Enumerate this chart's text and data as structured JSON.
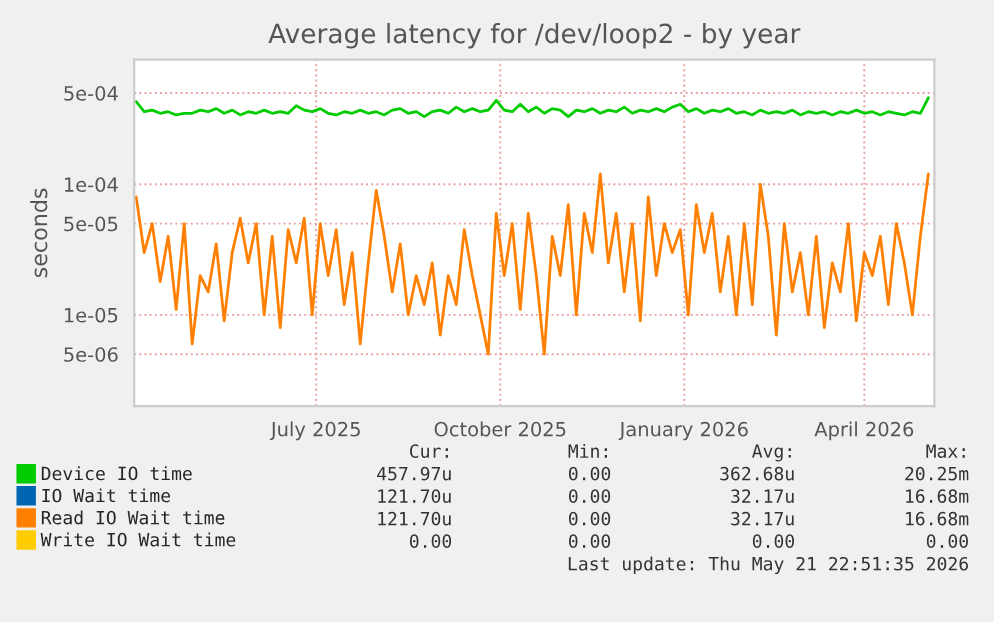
{
  "chart_data": {
    "type": "line",
    "title": "Average latency for /dev/loop2 - by year",
    "ylabel": "seconds",
    "log": "y",
    "grid": true,
    "legend": "bottom",
    "marker": "none",
    "line_style": "solid",
    "xlim": [
      "2025-04-16",
      "2026-05-21"
    ],
    "xticks": [
      {
        "value": "2025-07-16",
        "label": "July 2025"
      },
      {
        "value": "2025-10-16",
        "label": "October 2025"
      },
      {
        "value": "2026-01-16",
        "label": "January 2026"
      },
      {
        "value": "2026-04-16",
        "label": "April 2026"
      }
    ],
    "ylim": [
      2e-06,
      0.0009
    ],
    "yticks": [
      {
        "value": 5e-06,
        "label": "5e-06"
      },
      {
        "value": 1e-05,
        "label": "1e-05"
      },
      {
        "value": 5e-05,
        "label": "5e-05"
      },
      {
        "value": 0.0001,
        "label": "1e-04"
      },
      {
        "value": 0.0005,
        "label": "5e-04"
      }
    ],
    "x": [
      "2025-04-17",
      "2025-04-21",
      "2025-04-25",
      "2025-04-29",
      "2025-05-03",
      "2025-05-07",
      "2025-05-11",
      "2025-05-15",
      "2025-05-19",
      "2025-05-23",
      "2025-05-27",
      "2025-05-31",
      "2025-06-04",
      "2025-06-08",
      "2025-06-12",
      "2025-06-16",
      "2025-06-20",
      "2025-06-24",
      "2025-06-28",
      "2025-07-02",
      "2025-07-06",
      "2025-07-10",
      "2025-07-14",
      "2025-07-18",
      "2025-07-22",
      "2025-07-26",
      "2025-07-30",
      "2025-08-03",
      "2025-08-07",
      "2025-08-11",
      "2025-08-15",
      "2025-08-19",
      "2025-08-23",
      "2025-08-27",
      "2025-08-31",
      "2025-09-04",
      "2025-09-08",
      "2025-09-12",
      "2025-09-16",
      "2025-09-20",
      "2025-09-24",
      "2025-09-28",
      "2025-10-02",
      "2025-10-06",
      "2025-10-10",
      "2025-10-14",
      "2025-10-18",
      "2025-10-22",
      "2025-10-26",
      "2025-10-30",
      "2025-11-03",
      "2025-11-07",
      "2025-11-11",
      "2025-11-15",
      "2025-11-19",
      "2025-11-23",
      "2025-11-27",
      "2025-12-01",
      "2025-12-05",
      "2025-12-09",
      "2025-12-13",
      "2025-12-17",
      "2025-12-21",
      "2025-12-25",
      "2025-12-29",
      "2026-01-02",
      "2026-01-06",
      "2026-01-10",
      "2026-01-14",
      "2026-01-18",
      "2026-01-22",
      "2026-01-26",
      "2026-01-30",
      "2026-02-03",
      "2026-02-07",
      "2026-02-11",
      "2026-02-15",
      "2026-02-19",
      "2026-02-23",
      "2026-02-27",
      "2026-03-03",
      "2026-03-07",
      "2026-03-11",
      "2026-03-15",
      "2026-03-19",
      "2026-03-23",
      "2026-03-27",
      "2026-03-31",
      "2026-04-04",
      "2026-04-08",
      "2026-04-12",
      "2026-04-16",
      "2026-04-20",
      "2026-04-24",
      "2026-04-28",
      "2026-05-02",
      "2026-05-06",
      "2026-05-10",
      "2026-05-14",
      "2026-05-18"
    ],
    "series": [
      {
        "name": "Device IO time",
        "color": "#00cc00",
        "values": [
          0.00043,
          0.00036,
          0.00037,
          0.00035,
          0.00036,
          0.00034,
          0.00035,
          0.00035,
          0.00037,
          0.00036,
          0.00038,
          0.00035,
          0.00037,
          0.00034,
          0.00036,
          0.00035,
          0.00037,
          0.00035,
          0.00036,
          0.00035,
          0.0004,
          0.00037,
          0.00036,
          0.00038,
          0.00035,
          0.00034,
          0.00036,
          0.00035,
          0.00037,
          0.00035,
          0.00036,
          0.00034,
          0.00037,
          0.00038,
          0.00035,
          0.00036,
          0.00033,
          0.00036,
          0.00037,
          0.00035,
          0.00039,
          0.00036,
          0.00038,
          0.00036,
          0.00037,
          0.00044,
          0.00037,
          0.00036,
          0.00041,
          0.00036,
          0.00039,
          0.00035,
          0.00038,
          0.00037,
          0.00033,
          0.00037,
          0.00036,
          0.00038,
          0.00035,
          0.00037,
          0.00036,
          0.00039,
          0.00035,
          0.00037,
          0.00036,
          0.00038,
          0.00036,
          0.00039,
          0.00041,
          0.00036,
          0.00038,
          0.00035,
          0.00037,
          0.00036,
          0.00038,
          0.00035,
          0.00036,
          0.00034,
          0.00037,
          0.00035,
          0.00036,
          0.00035,
          0.00037,
          0.00034,
          0.00036,
          0.00035,
          0.00036,
          0.00034,
          0.00036,
          0.00035,
          0.00037,
          0.00035,
          0.00036,
          0.00034,
          0.00036,
          0.00035,
          0.00034,
          0.00036,
          0.00035,
          0.00046
        ]
      },
      {
        "name": "IO Wait time",
        "color": "#0066b3",
        "values": [
          null,
          null,
          null,
          null,
          null,
          null,
          null,
          null,
          null,
          null,
          null,
          null,
          null,
          null,
          null,
          null,
          null,
          null,
          null,
          null,
          null,
          null,
          null,
          null,
          null,
          null,
          null,
          null,
          null,
          null,
          null,
          null,
          null,
          null,
          null,
          null,
          null,
          null,
          null,
          null,
          null,
          null,
          null,
          null,
          null,
          null,
          null,
          null,
          null,
          null,
          null,
          null,
          null,
          null,
          null,
          null,
          null,
          null,
          null,
          null,
          null,
          null,
          null,
          null,
          null,
          null,
          null,
          null,
          null,
          null,
          null,
          null,
          null,
          null,
          null,
          null,
          null,
          null,
          null,
          null,
          null,
          null,
          null,
          null,
          null,
          null,
          null,
          null,
          null,
          null,
          null,
          null,
          null,
          null,
          null,
          null,
          null,
          null,
          null,
          null
        ]
      },
      {
        "name": "Read IO Wait time",
        "color": "#ff8000",
        "values": [
          8e-05,
          3e-05,
          5e-05,
          1.8e-05,
          4e-05,
          1.1e-05,
          5e-05,
          6e-06,
          2e-05,
          1.5e-05,
          3.5e-05,
          9e-06,
          3e-05,
          5.5e-05,
          2.5e-05,
          5e-05,
          1e-05,
          4e-05,
          8e-06,
          4.5e-05,
          2.5e-05,
          5.5e-05,
          1e-05,
          5e-05,
          2e-05,
          4.5e-05,
          1.2e-05,
          3e-05,
          6e-06,
          2.5e-05,
          9e-05,
          4e-05,
          1.5e-05,
          3.5e-05,
          1e-05,
          2e-05,
          1.2e-05,
          2.5e-05,
          7e-06,
          2e-05,
          1.2e-05,
          4.5e-05,
          2e-05,
          1e-05,
          5e-06,
          6e-05,
          2e-05,
          5e-05,
          1.1e-05,
          6e-05,
          2e-05,
          5e-06,
          4e-05,
          2e-05,
          7e-05,
          1e-05,
          6e-05,
          3e-05,
          0.00012,
          2.5e-05,
          6e-05,
          1.5e-05,
          5e-05,
          9e-06,
          8e-05,
          2e-05,
          5e-05,
          3e-05,
          4.5e-05,
          1e-05,
          7e-05,
          3e-05,
          6e-05,
          1.5e-05,
          4e-05,
          1e-05,
          5e-05,
          1.2e-05,
          0.0001,
          4e-05,
          7e-06,
          5e-05,
          1.5e-05,
          3e-05,
          1e-05,
          4e-05,
          8e-06,
          2.5e-05,
          1.5e-05,
          5e-05,
          9e-06,
          3e-05,
          2e-05,
          4e-05,
          1.2e-05,
          5e-05,
          2.5e-05,
          1e-05,
          4e-05,
          0.00012
        ]
      },
      {
        "name": "Write IO Wait time",
        "color": "#ffcc00",
        "values": [
          null,
          null,
          null,
          null,
          null,
          null,
          null,
          null,
          null,
          null,
          null,
          null,
          null,
          null,
          null,
          null,
          null,
          null,
          null,
          null,
          null,
          null,
          null,
          null,
          null,
          null,
          null,
          null,
          null,
          null,
          null,
          null,
          null,
          null,
          null,
          null,
          null,
          null,
          null,
          null,
          null,
          null,
          null,
          null,
          null,
          null,
          null,
          null,
          null,
          null,
          null,
          null,
          null,
          null,
          null,
          null,
          null,
          null,
          null,
          null,
          null,
          null,
          null,
          null,
          null,
          null,
          null,
          null,
          null,
          null,
          null,
          null,
          null,
          null,
          null,
          null,
          null,
          null,
          null,
          null,
          null,
          null,
          null,
          null,
          null,
          null,
          null,
          null,
          null,
          null,
          null,
          null,
          null,
          null,
          null,
          null,
          null,
          null,
          null,
          null
        ]
      }
    ],
    "annotations": [
      "Cur:",
      "Min:",
      "Avg:",
      "Max:",
      "457.97u",
      "0.00",
      "362.68u",
      "20.25m",
      "121.70u",
      "0.00",
      "32.17u",
      "16.68m",
      "121.70u",
      "0.00",
      "32.17u",
      "16.68m",
      "0.00",
      "0.00",
      "0.00",
      "0.00",
      "Last update: Thu May 21 22:51:35 2026"
    ]
  }
}
